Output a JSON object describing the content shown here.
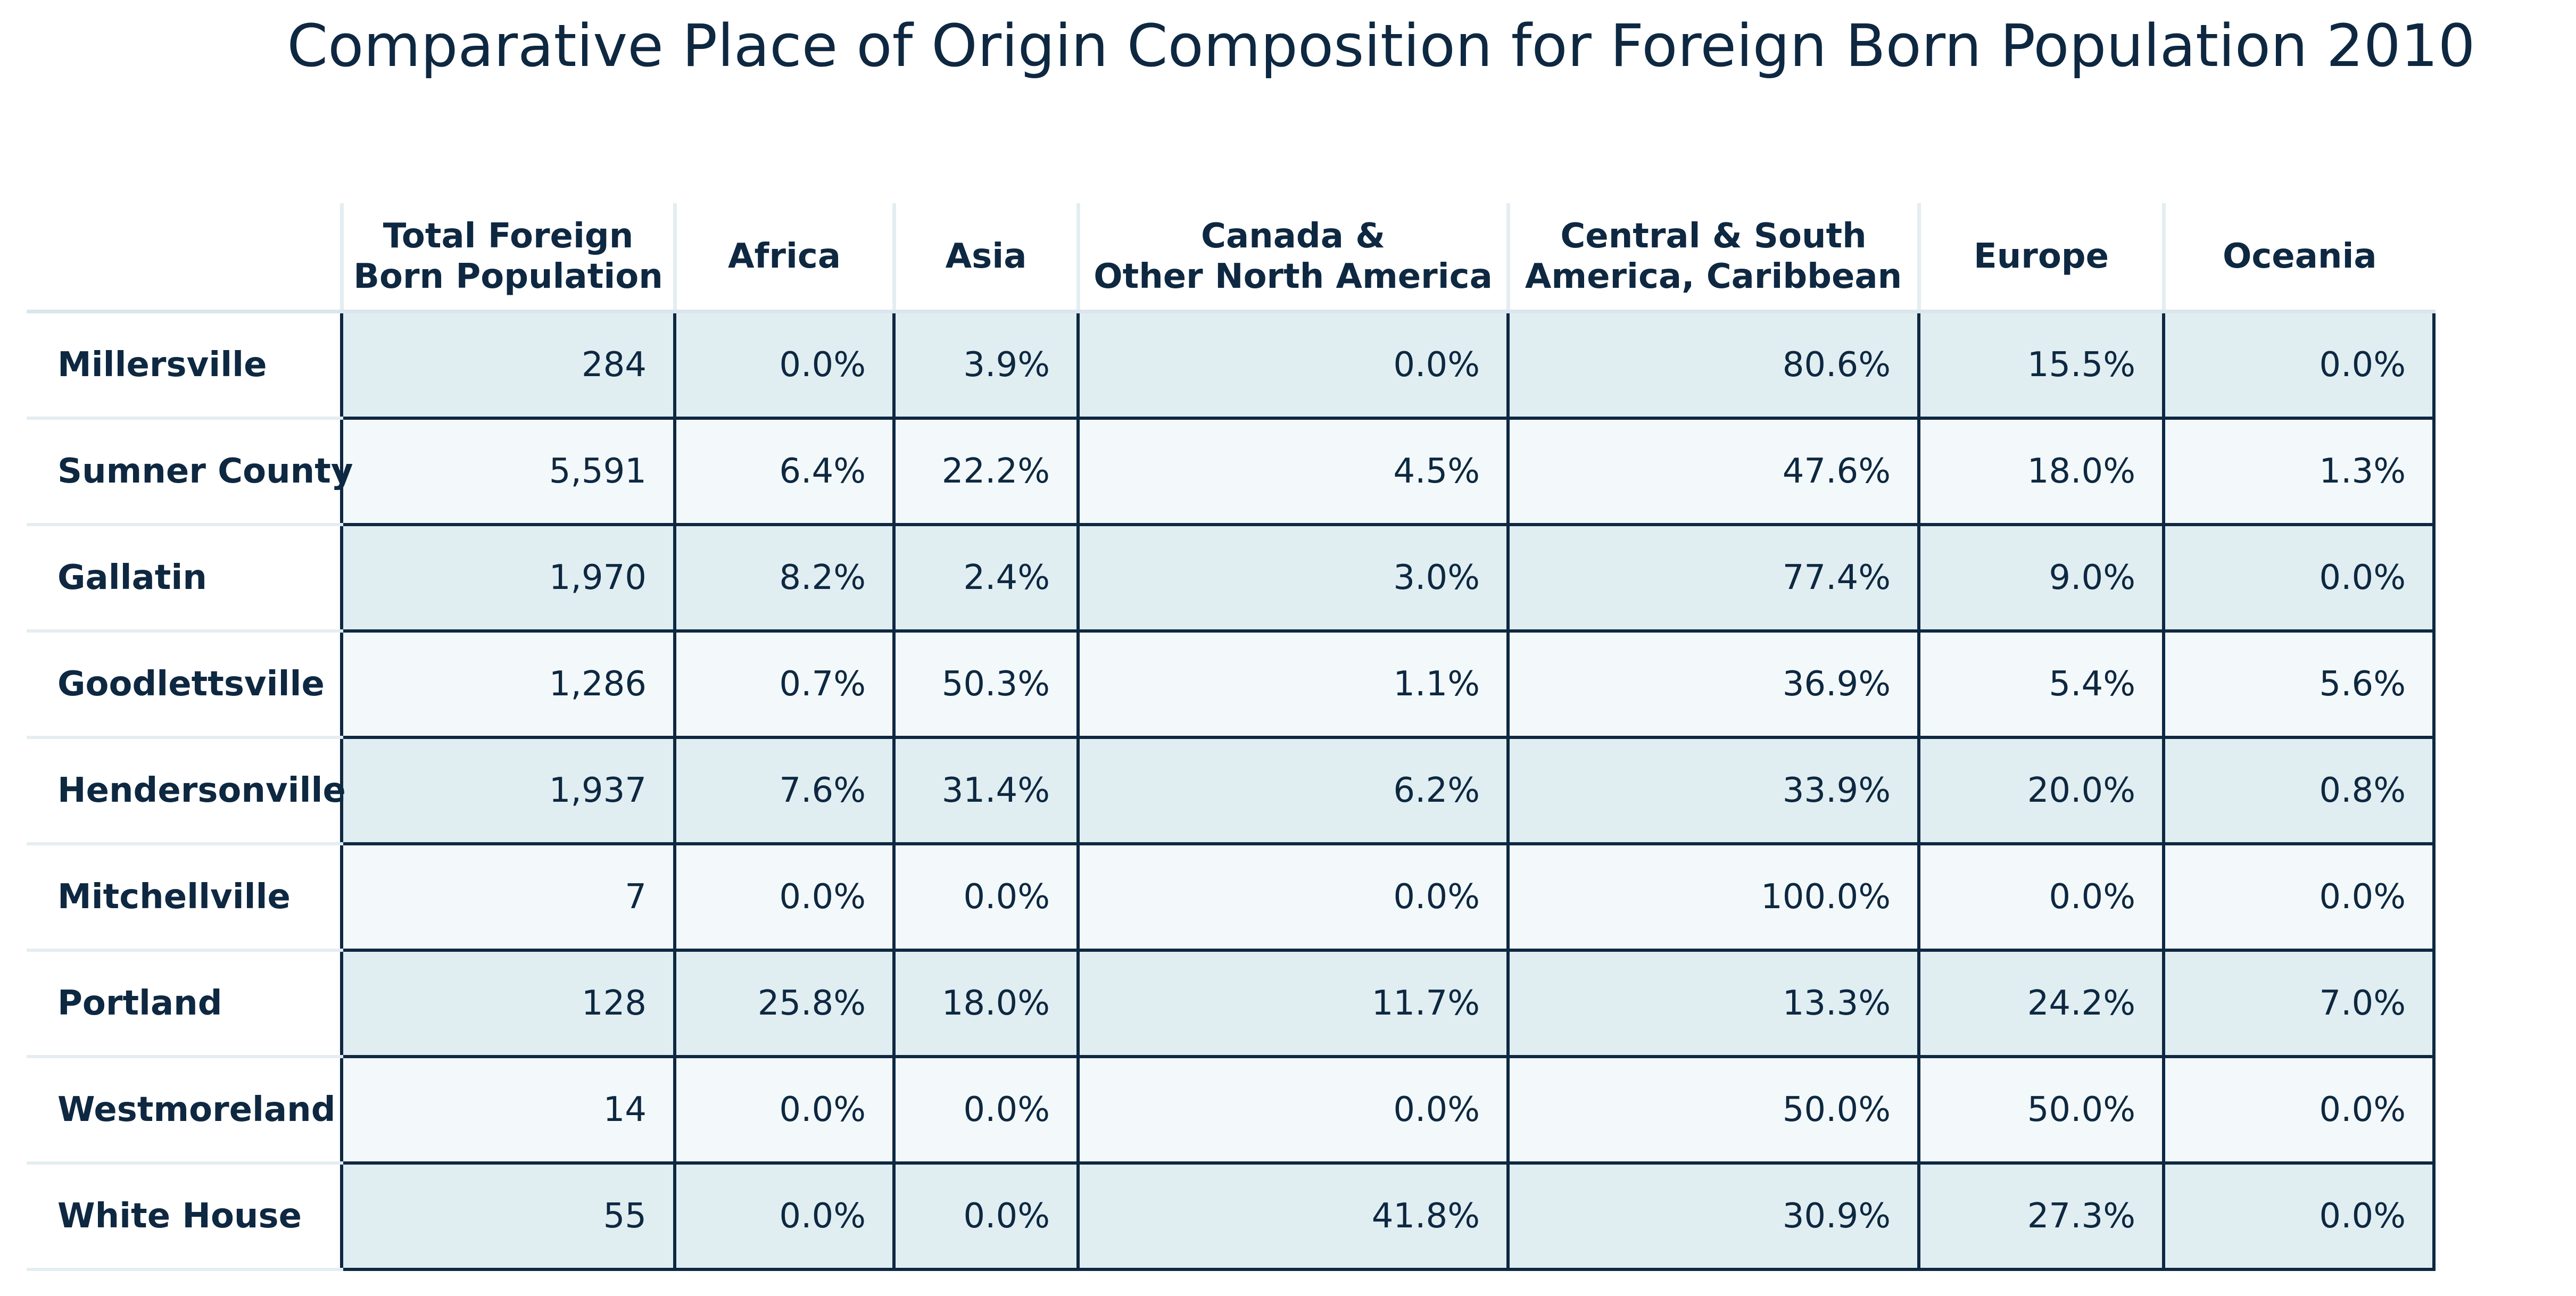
{
  "chart_data": {
    "type": "table",
    "title": "Comparative Place of Origin Composition for Foreign Born Population 2010",
    "columns": [
      {
        "label": ""
      },
      {
        "label_lines": [
          "Total Foreign",
          "Born Population"
        ]
      },
      {
        "label_lines": [
          "Africa"
        ]
      },
      {
        "label_lines": [
          "Asia"
        ]
      },
      {
        "label_lines": [
          "Canada &",
          "Other North America"
        ]
      },
      {
        "label_lines": [
          "Central & South",
          "America, Caribbean"
        ]
      },
      {
        "label_lines": [
          "Europe"
        ]
      },
      {
        "label_lines": [
          "Oceania"
        ]
      }
    ],
    "rows": [
      {
        "name": "Millersville",
        "values": [
          "284",
          "0.0%",
          "3.9%",
          "0.0%",
          "80.6%",
          "15.5%",
          "0.0%"
        ]
      },
      {
        "name": "Sumner County",
        "values": [
          "5,591",
          "6.4%",
          "22.2%",
          "4.5%",
          "47.6%",
          "18.0%",
          "1.3%"
        ]
      },
      {
        "name": "Gallatin",
        "values": [
          "1,970",
          "8.2%",
          "2.4%",
          "3.0%",
          "77.4%",
          "9.0%",
          "0.0%"
        ]
      },
      {
        "name": "Goodlettsville",
        "values": [
          "1,286",
          "0.7%",
          "50.3%",
          "1.1%",
          "36.9%",
          "5.4%",
          "5.6%"
        ]
      },
      {
        "name": "Hendersonville",
        "values": [
          "1,937",
          "7.6%",
          "31.4%",
          "6.2%",
          "33.9%",
          "20.0%",
          "0.8%"
        ]
      },
      {
        "name": "Mitchellville",
        "values": [
          "7",
          "0.0%",
          "0.0%",
          "0.0%",
          "100.0%",
          "0.0%",
          "0.0%"
        ]
      },
      {
        "name": "Portland",
        "values": [
          "128",
          "25.8%",
          "18.0%",
          "11.7%",
          "13.3%",
          "24.2%",
          "7.0%"
        ]
      },
      {
        "name": "Westmoreland",
        "values": [
          "14",
          "0.0%",
          "0.0%",
          "0.0%",
          "50.0%",
          "50.0%",
          "0.0%"
        ]
      },
      {
        "name": "White House",
        "values": [
          "55",
          "0.0%",
          "0.0%",
          "41.8%",
          "30.9%",
          "27.3%",
          "0.0%"
        ]
      }
    ]
  },
  "colors": {
    "text": "#0e2841",
    "row_band_dark": "#e0eef2",
    "row_band_light": "#f3f9fa",
    "cell_border": "#0e2841",
    "header_rule": "#e4edf2"
  }
}
